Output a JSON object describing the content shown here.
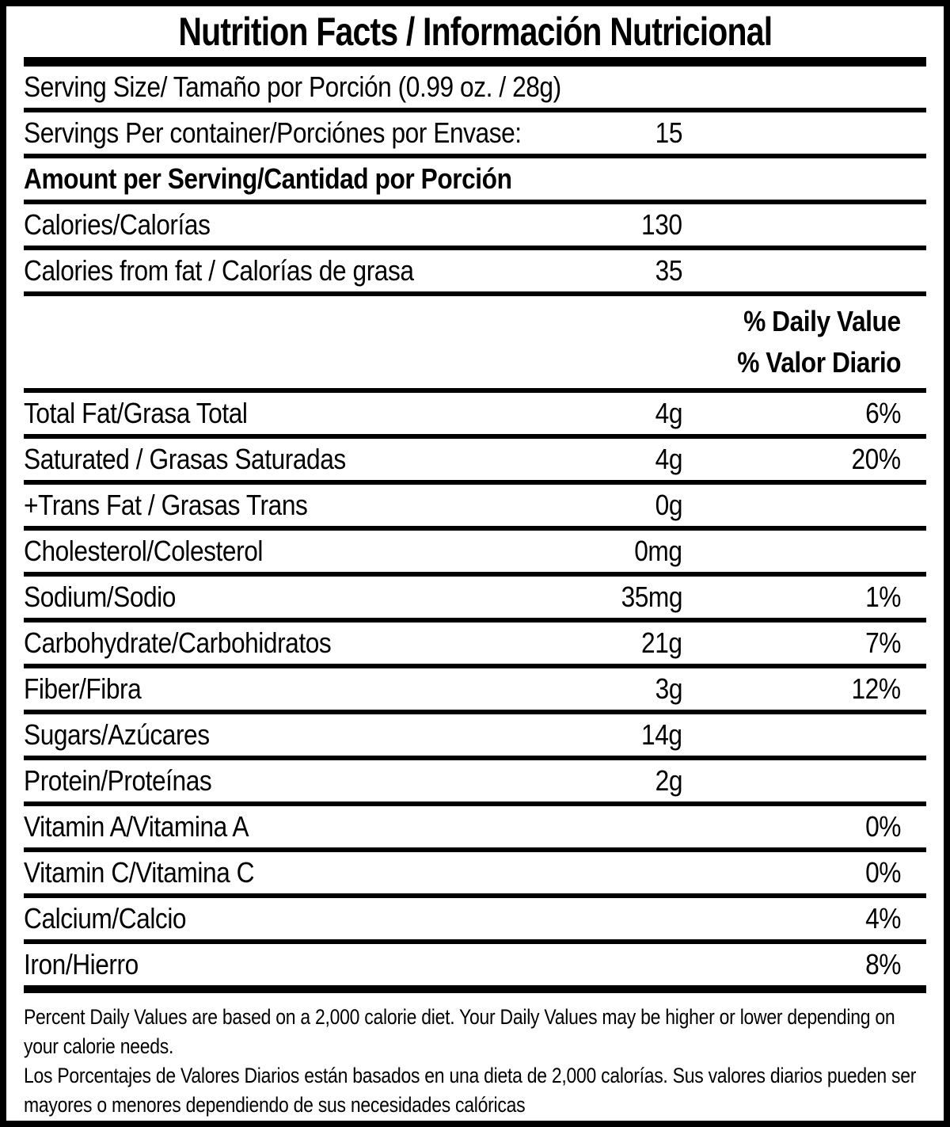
{
  "title": "Nutrition Facts / Información Nutricional",
  "serving": {
    "size_label": "Serving Size/ Tamaño por Porción  (0.99 oz. / 28g)",
    "per_container_label": "Servings Per container/Porciónes por Envase:",
    "per_container_value": "15"
  },
  "amount_header": "Amount per Serving/Cantidad por Porción",
  "calories": {
    "label": "Calories/Calorías",
    "value": "130"
  },
  "calories_from_fat": {
    "label": "Calories from fat / Calorías de grasa",
    "value": "35"
  },
  "dv_header": {
    "line1": "% Daily Value",
    "line2": "% Valor Diario"
  },
  "nutrients": [
    {
      "label": "Total Fat/Grasa Total",
      "amount": "4g",
      "dv": "6%"
    },
    {
      "label": "Saturated / Grasas Saturadas",
      "amount": "4g",
      "dv": "20%"
    },
    {
      "label": "+Trans Fat / Grasas Trans",
      "amount": "0g",
      "dv": ""
    },
    {
      "label": "Cholesterol/Colesterol",
      "amount": "0mg",
      "dv": ""
    },
    {
      "label": "Sodium/Sodio",
      "amount": "35mg",
      "dv": "1%"
    },
    {
      "label": "Carbohydrate/Carbohidratos",
      "amount": "21g",
      "dv": "7%"
    },
    {
      "label": "Fiber/Fibra",
      "amount": "3g",
      "dv": "12%"
    },
    {
      "label": "Sugars/Azúcares",
      "amount": "14g",
      "dv": ""
    },
    {
      "label": "Protein/Proteínas",
      "amount": "2g",
      "dv": ""
    },
    {
      "label": "Vitamin A/Vitamina A",
      "amount": "",
      "dv": "0%"
    },
    {
      "label": "Vitamin C/Vitamina C",
      "amount": "",
      "dv": "0%"
    },
    {
      "label": "Calcium/Calcio",
      "amount": "",
      "dv": "4%"
    },
    {
      "label": "Iron/Hierro",
      "amount": "",
      "dv": "8%"
    }
  ],
  "footnote": {
    "en": "Percent Daily Values are based on a 2,000 calorie diet. Your Daily Values may be higher or lower depending on your calorie needs.",
    "es": "Los Porcentajes de Valores Diarios están basados en una dieta de 2,000 calorías. Sus valores diarios pueden ser mayores o menores dependiendo de sus necesidades calóricas"
  },
  "colors": {
    "ink": "#000000",
    "paper": "#ffffff"
  }
}
